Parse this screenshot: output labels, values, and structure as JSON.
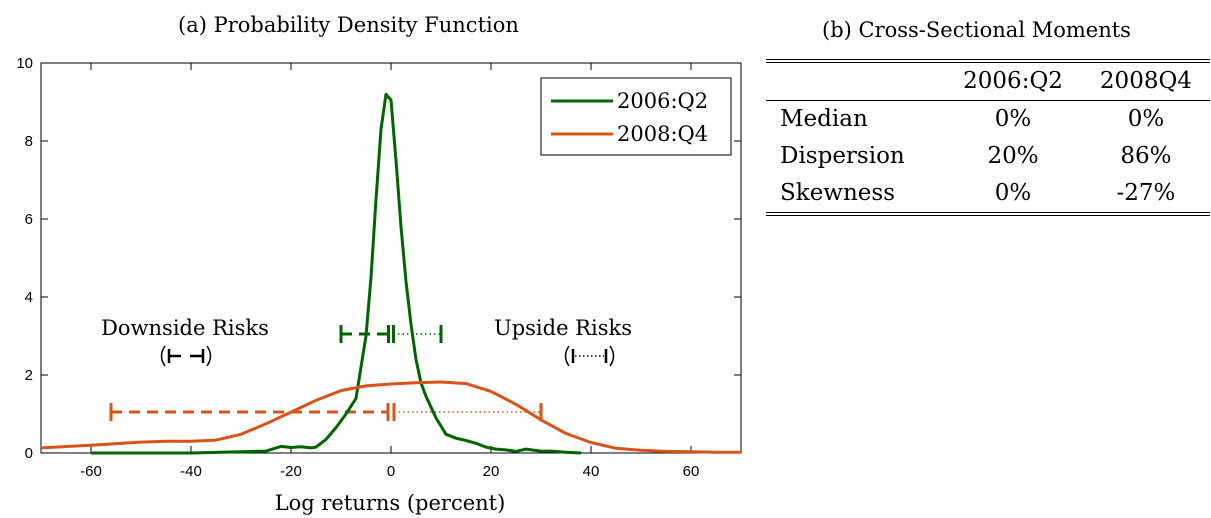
{
  "panel_a": {
    "title": "(a) Probability Density Function"
  },
  "panel_b": {
    "title": "(b) Cross-Sectional Moments",
    "columns": [
      "",
      "2006:Q2",
      "2008Q4"
    ],
    "rows": [
      {
        "label": "Median",
        "v1": "0%",
        "v2": "0%"
      },
      {
        "label": "Dispersion",
        "v1": "20%",
        "v2": "86%"
      },
      {
        "label": "Skewness",
        "v1": "0%",
        "v2": "-27%"
      }
    ]
  },
  "colors": {
    "green": "#006400",
    "orange": "#d95319"
  },
  "chart_data": {
    "type": "line",
    "xlabel": "Log returns (percent)",
    "ylabel": "",
    "xlim": [
      -70,
      70
    ],
    "ylim": [
      0,
      10
    ],
    "xticks": [
      -60,
      -40,
      -20,
      0,
      20,
      40,
      60
    ],
    "yticks": [
      0,
      2,
      4,
      6,
      8,
      10
    ],
    "legend_position": "top-right",
    "series": [
      {
        "name": "2006:Q2",
        "color": "#006400",
        "x": [
          -60,
          -40,
          -30,
          -25,
          -22,
          -20,
          -18,
          -16,
          -15,
          -13,
          -11,
          -9,
          -7,
          -5,
          -4,
          -3,
          -2,
          -1,
          0,
          1,
          2,
          3,
          4,
          5,
          6,
          7,
          9,
          11,
          13,
          15,
          17,
          19,
          21,
          23,
          25,
          27,
          30,
          32,
          35,
          38
        ],
        "y": [
          0,
          0,
          0.03,
          0.05,
          0.17,
          0.14,
          0.16,
          0.13,
          0.15,
          0.35,
          0.65,
          1,
          1.4,
          3,
          4.5,
          6.5,
          8.3,
          9.2,
          9.05,
          7.5,
          5.8,
          4.4,
          3.3,
          2.4,
          1.8,
          1.45,
          0.9,
          0.48,
          0.38,
          0.32,
          0.25,
          0.15,
          0.1,
          0.08,
          0.04,
          0.1,
          0.05,
          0.05,
          0.02,
          0
        ]
      },
      {
        "name": "2008:Q4",
        "color": "#d95319",
        "x": [
          -70,
          -60,
          -50,
          -45,
          -40,
          -35,
          -30,
          -25,
          -20,
          -15,
          -10,
          -5,
          0,
          5,
          10,
          15,
          20,
          25,
          30,
          35,
          40,
          45,
          50,
          55,
          60,
          65,
          70
        ],
        "y": [
          0.13,
          0.2,
          0.28,
          0.3,
          0.3,
          0.33,
          0.48,
          0.75,
          1.05,
          1.35,
          1.6,
          1.72,
          1.77,
          1.8,
          1.82,
          1.78,
          1.58,
          1.25,
          0.85,
          0.5,
          0.27,
          0.12,
          0.07,
          0.04,
          0.03,
          0.02,
          0.02
        ]
      }
    ],
    "risk_bars": [
      {
        "series": "2006:Q2",
        "color": "#006400",
        "y": 3.05,
        "down_from": -10,
        "down_to": -0.5,
        "up_from": 0.5,
        "up_to": 10
      },
      {
        "series": "2008:Q4",
        "color": "#d95319",
        "y": 1.05,
        "down_from": -56,
        "down_to": -0.6,
        "up_from": 0.6,
        "up_to": 30
      }
    ],
    "annotations": [
      {
        "id": "downside",
        "text": "Downside Risks",
        "x": -47,
        "y": 3.3
      },
      {
        "id": "upside",
        "text": "Upside Risks",
        "x": 34,
        "y": 3.3
      }
    ]
  }
}
